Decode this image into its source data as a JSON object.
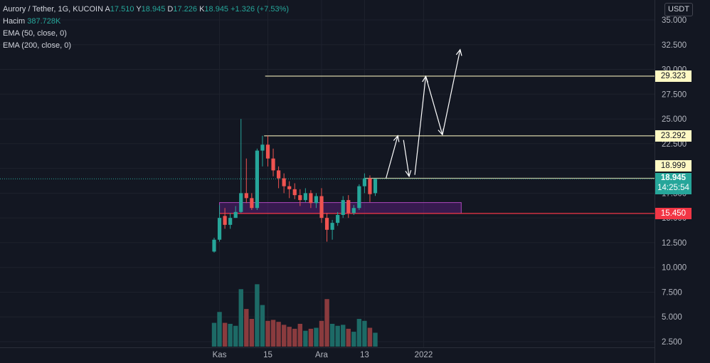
{
  "legend": {
    "symbol": "Aurory / Tether, 1G, KUCOIN",
    "open_label": "A",
    "open": "17.510",
    "high_label": "Y",
    "high": "18.945",
    "low_label": "D",
    "low": "17.226",
    "close_label": "K",
    "close": "18.945",
    "change": "+1.326 (+7.53%)",
    "volume_label": "Hacim",
    "volume": "387.728K",
    "ema1": "EMA (50, close, 0)",
    "ema2": "EMA (200, close, 0)"
  },
  "currency": "USDT",
  "price_tags": {
    "t1": "29.323",
    "t2": "23.292",
    "t3": "18.999",
    "current": "18.945",
    "countdown": "14:25:54",
    "support": "15.450"
  },
  "colors": {
    "background": "#131722",
    "up": "#26a69a",
    "down": "#ef5350",
    "up_volume": "#1d6a66",
    "down_volume": "#8a3b3e",
    "level_line": "#fff9c4",
    "support_line": "#f23645",
    "zone_fill": "#7b1fa2",
    "arrows": "#ffffff"
  },
  "chart_data": {
    "type": "candlestick",
    "title": "Aurory / Tether, 1G, KUCOIN",
    "ylabel": "USDT",
    "ylim": [
      2.0,
      36.2
    ],
    "ytick_labels": [
      "35.000",
      "32.500",
      "30.000",
      "27.500",
      "25.000",
      "22.500",
      "20.000",
      "17.500",
      "15.000",
      "12.500",
      "10.000",
      "7.500",
      "5.000",
      "2.500"
    ],
    "yticks": [
      35.0,
      32.5,
      30.0,
      27.5,
      25.0,
      22.5,
      20.0,
      17.5,
      15.0,
      12.5,
      10.0,
      7.5,
      5.0,
      2.5
    ],
    "xtick_labels": [
      "Kas",
      "15",
      "Ara",
      "13",
      "2022"
    ],
    "xtick_index": [
      1,
      10,
      20,
      28,
      39
    ],
    "candles": [
      {
        "o": 11.6,
        "h": 13.0,
        "l": 11.5,
        "c": 12.8,
        "v": 4.4
      },
      {
        "o": 12.8,
        "h": 16.3,
        "l": 12.6,
        "c": 15.0,
        "v": 5.5
      },
      {
        "o": 15.2,
        "h": 16.0,
        "l": 13.9,
        "c": 14.3,
        "v": 4.4
      },
      {
        "o": 14.3,
        "h": 15.5,
        "l": 13.9,
        "c": 15.0,
        "v": 4.3
      },
      {
        "o": 15.0,
        "h": 16.2,
        "l": 15.0,
        "c": 15.6,
        "v": 4.1
      },
      {
        "o": 15.6,
        "h": 25.0,
        "l": 15.5,
        "c": 17.5,
        "v": 7.8
      },
      {
        "o": 17.5,
        "h": 21.0,
        "l": 16.5,
        "c": 17.0,
        "v": 5.8
      },
      {
        "o": 17.0,
        "h": 17.5,
        "l": 15.8,
        "c": 16.0,
        "v": 4.8
      },
      {
        "o": 16.0,
        "h": 22.0,
        "l": 15.8,
        "c": 21.8,
        "v": 8.3
      },
      {
        "o": 21.8,
        "h": 23.3,
        "l": 20.2,
        "c": 22.4,
        "v": 6.2
      },
      {
        "o": 22.4,
        "h": 23.3,
        "l": 20.2,
        "c": 21.0,
        "v": 4.6
      },
      {
        "o": 21.0,
        "h": 22.0,
        "l": 19.2,
        "c": 19.8,
        "v": 4.7
      },
      {
        "o": 19.8,
        "h": 20.2,
        "l": 18.0,
        "c": 19.0,
        "v": 4.5
      },
      {
        "o": 19.0,
        "h": 19.5,
        "l": 17.5,
        "c": 18.2,
        "v": 4.2
      },
      {
        "o": 18.2,
        "h": 18.7,
        "l": 17.0,
        "c": 17.9,
        "v": 4.0
      },
      {
        "o": 17.9,
        "h": 18.5,
        "l": 16.9,
        "c": 17.3,
        "v": 3.8
      },
      {
        "o": 17.3,
        "h": 17.9,
        "l": 16.2,
        "c": 16.8,
        "v": 4.3
      },
      {
        "o": 16.8,
        "h": 18.0,
        "l": 16.6,
        "c": 17.5,
        "v": 3.6
      },
      {
        "o": 17.5,
        "h": 17.8,
        "l": 16.0,
        "c": 16.5,
        "v": 3.8
      },
      {
        "o": 16.5,
        "h": 17.5,
        "l": 16.0,
        "c": 17.2,
        "v": 3.9
      },
      {
        "o": 17.2,
        "h": 18.0,
        "l": 14.5,
        "c": 15.0,
        "v": 4.6
      },
      {
        "o": 15.0,
        "h": 15.5,
        "l": 12.6,
        "c": 13.8,
        "v": 6.8
      },
      {
        "o": 13.8,
        "h": 14.8,
        "l": 12.8,
        "c": 14.5,
        "v": 4.3
      },
      {
        "o": 14.5,
        "h": 15.6,
        "l": 14.2,
        "c": 15.3,
        "v": 4.1
      },
      {
        "o": 15.3,
        "h": 17.2,
        "l": 15.0,
        "c": 16.8,
        "v": 4.2
      },
      {
        "o": 16.8,
        "h": 17.3,
        "l": 15.0,
        "c": 15.5,
        "v": 3.8
      },
      {
        "o": 15.5,
        "h": 16.3,
        "l": 15.3,
        "c": 16.0,
        "v": 3.5
      },
      {
        "o": 16.0,
        "h": 18.4,
        "l": 15.8,
        "c": 18.2,
        "v": 4.8
      },
      {
        "o": 18.2,
        "h": 19.5,
        "l": 17.5,
        "c": 19.0,
        "v": 4.6
      },
      {
        "o": 19.0,
        "h": 19.3,
        "l": 16.6,
        "c": 17.4,
        "v": 3.9
      },
      {
        "o": 17.5,
        "h": 18.945,
        "l": 17.226,
        "c": 18.945,
        "v": 3.4
      }
    ],
    "volume_scale_base": 2.0,
    "levels": [
      29.323,
      23.292,
      18.999
    ],
    "support_level": 15.45,
    "zone": {
      "from_index": 1,
      "to_index": 46,
      "low": 15.45,
      "high": 16.55
    },
    "current_price": 18.945,
    "projection_path": [
      {
        "i": 32,
        "p": 19.0
      },
      {
        "i": 34.2,
        "p": 23.3
      },
      {
        "i": 36.3,
        "p": 19.2
      },
      {
        "i": 39.4,
        "p": 29.3
      },
      {
        "i": 42.5,
        "p": 23.4
      },
      {
        "i": 45.8,
        "p": 32.0
      }
    ]
  }
}
